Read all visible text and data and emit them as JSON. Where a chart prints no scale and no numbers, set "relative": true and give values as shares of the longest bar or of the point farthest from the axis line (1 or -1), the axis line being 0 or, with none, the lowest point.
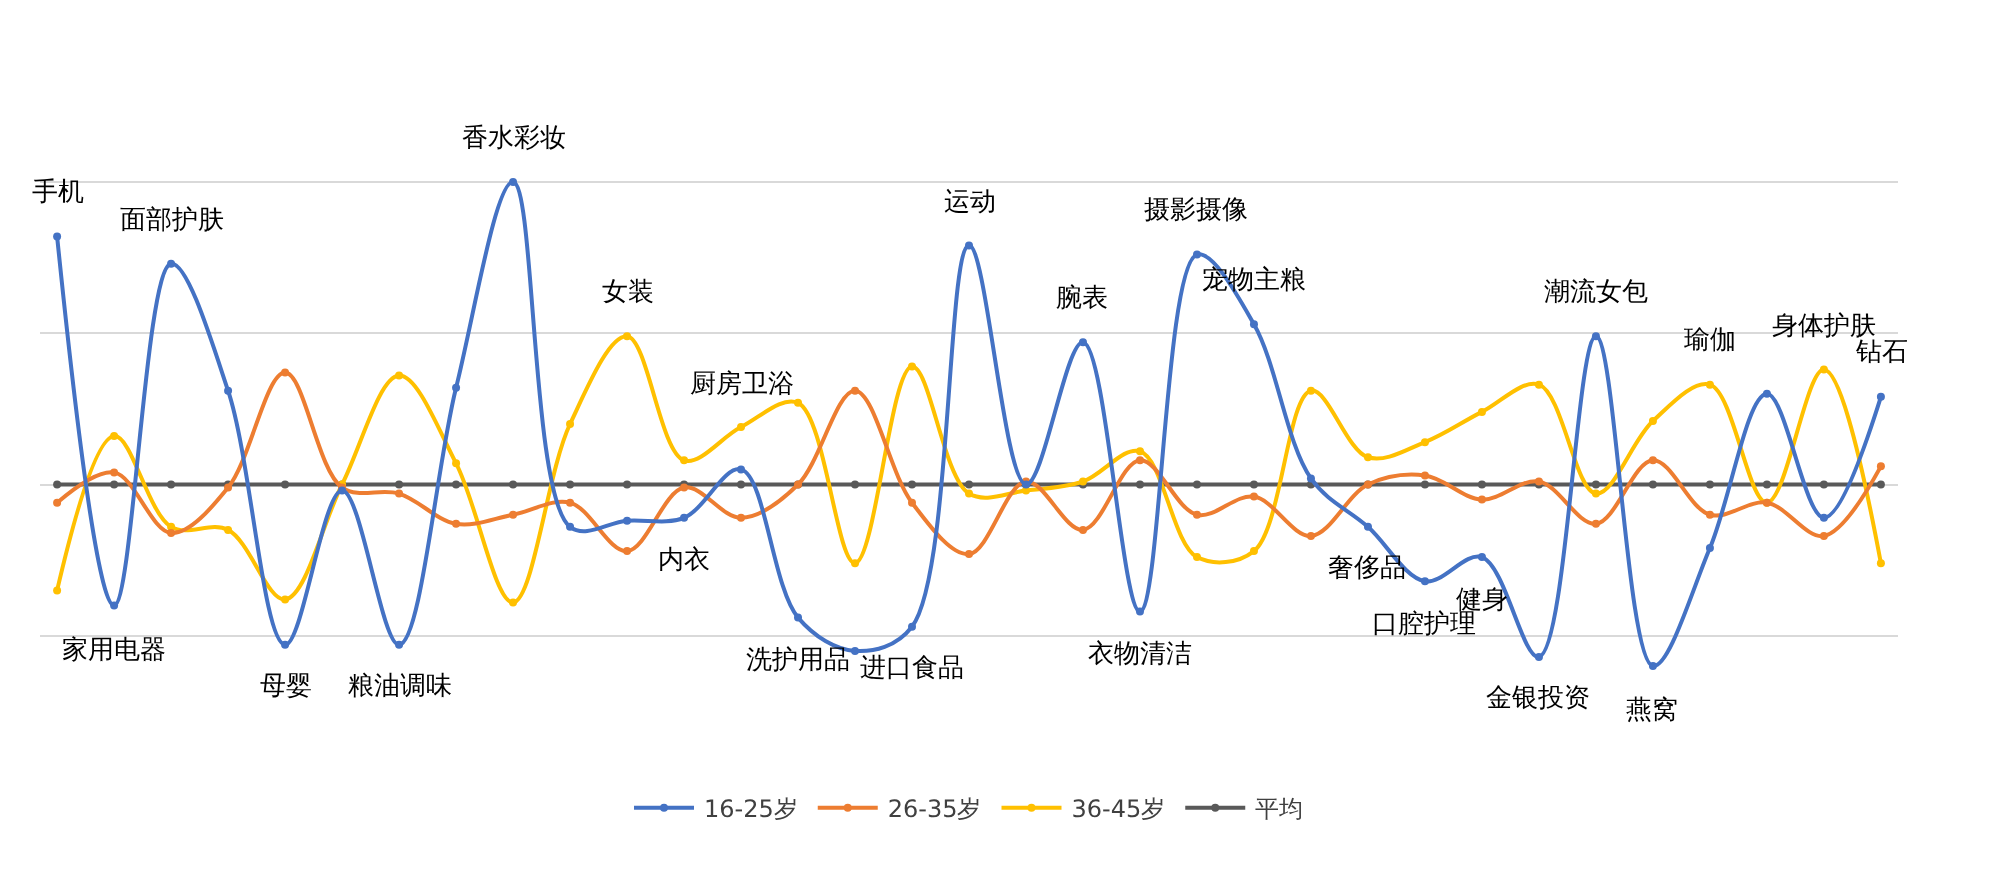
{
  "chart_data": {
    "type": "line",
    "relative": true,
    "grid": "y",
    "legend": "bottom",
    "marker": "circle",
    "line_style": "solid",
    "categories": [
      "手机",
      "家用电器",
      "面部护肤",
      null,
      "母婴",
      null,
      "粮油调味",
      null,
      "香水彩妆",
      null,
      "女装",
      "内衣",
      "厨房卫浴",
      "洗护用品",
      null,
      "进口食品",
      "运动",
      null,
      "腕表",
      "衣物清洁",
      "摄影摄像",
      "宠物主粮",
      null,
      "奢侈品",
      "口腔护理",
      "健身",
      "金银投资",
      "潮流女包",
      "燕窝",
      "瑜伽",
      null,
      "身体护肤",
      "钻石"
    ],
    "series": [
      {
        "name": "16-25岁",
        "color": "#4472c4",
        "values": [
          0.82,
          -0.4,
          0.73,
          0.31,
          -0.53,
          -0.02,
          -0.53,
          0.32,
          1,
          -0.14,
          -0.12,
          -0.11,
          0.05,
          -0.44,
          -0.55,
          -0.47,
          0.79,
          0,
          0.47,
          -0.42,
          0.76,
          0.53,
          0.02,
          -0.14,
          -0.32,
          -0.24,
          -0.57,
          0.49,
          -0.6,
          -0.21,
          0.3,
          -0.11,
          0.29
        ]
      },
      {
        "name": "26-35岁",
        "color": "#ed7d31",
        "values": [
          -0.06,
          0.04,
          -0.16,
          -0.01,
          0.37,
          -0.01,
          -0.03,
          -0.13,
          -0.1,
          -0.06,
          -0.22,
          -0.01,
          -0.11,
          0,
          0.31,
          -0.06,
          -0.23,
          0.01,
          -0.15,
          0.08,
          -0.1,
          -0.04,
          -0.17,
          0,
          0.03,
          -0.05,
          0.01,
          -0.13,
          0.08,
          -0.1,
          -0.06,
          -0.17,
          0.06
        ]
      },
      {
        "name": "36-45岁",
        "color": "#ffc000",
        "values": [
          -0.35,
          0.16,
          -0.14,
          -0.15,
          -0.38,
          0,
          0.36,
          0.07,
          -0.39,
          0.2,
          0.49,
          0.08,
          0.19,
          0.27,
          -0.26,
          0.39,
          -0.03,
          -0.02,
          0.01,
          0.11,
          -0.24,
          -0.22,
          0.31,
          0.09,
          0.14,
          0.24,
          0.33,
          -0.03,
          0.21,
          0.33,
          -0.06,
          0.38,
          -0.26
        ]
      },
      {
        "name": "平均",
        "color": "#595959",
        "values": [
          0,
          0,
          0,
          0,
          0,
          0,
          0,
          0,
          0,
          0,
          0,
          0,
          0,
          0,
          0,
          0,
          0,
          0,
          0,
          0,
          0,
          0,
          0,
          0,
          0,
          0,
          0,
          0,
          0,
          0,
          0,
          0,
          0
        ]
      }
    ]
  }
}
